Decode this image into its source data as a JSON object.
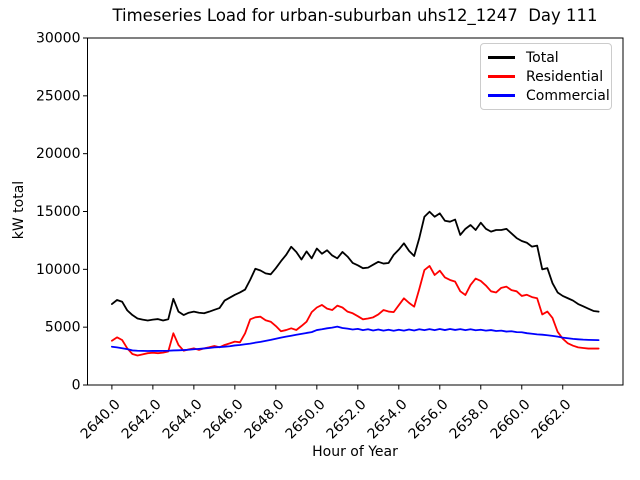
{
  "chart_data": {
    "type": "line",
    "title": "Timeseries Load for urban-suburban uhs12_1247  Day 111",
    "xlabel": "Hour of Year",
    "ylabel": "kW total",
    "xlim": [
      2638.81,
      2664.94
    ],
    "ylim": [
      0,
      30000
    ],
    "grid": false,
    "legend_position": "upper right",
    "yticks": {
      "values": [
        0,
        5000,
        10000,
        15000,
        20000,
        25000,
        30000
      ],
      "labels": [
        "0",
        "5000",
        "10000",
        "15000",
        "20000",
        "25000",
        "30000"
      ]
    },
    "xticks": {
      "values": [
        2640,
        2642,
        2644,
        2646,
        2648,
        2650,
        2652,
        2654,
        2656,
        2658,
        2660,
        2662
      ],
      "labels": [
        "2640.0",
        "2642.0",
        "2644.0",
        "2646.0",
        "2648.0",
        "2650.0",
        "2652.0",
        "2654.0",
        "2656.0",
        "2658.0",
        "2660.0",
        "2662.0"
      ],
      "rotation": 45
    },
    "x": [
      2640.0,
      2640.25,
      2640.5,
      2640.75,
      2641.0,
      2641.25,
      2641.5,
      2641.75,
      2642.0,
      2642.25,
      2642.5,
      2642.75,
      2643.0,
      2643.25,
      2643.5,
      2643.75,
      2644.0,
      2644.25,
      2644.5,
      2644.75,
      2645.0,
      2645.25,
      2645.5,
      2645.75,
      2646.0,
      2646.25,
      2646.5,
      2646.75,
      2647.0,
      2647.25,
      2647.5,
      2647.75,
      2648.0,
      2648.25,
      2648.5,
      2648.75,
      2649.0,
      2649.25,
      2649.5,
      2649.75,
      2650.0,
      2650.25,
      2650.5,
      2650.75,
      2651.0,
      2651.25,
      2651.5,
      2651.75,
      2652.0,
      2652.25,
      2652.5,
      2652.75,
      2653.0,
      2653.25,
      2653.5,
      2653.75,
      2654.0,
      2654.25,
      2654.5,
      2654.75,
      2655.0,
      2655.25,
      2655.5,
      2655.75,
      2656.0,
      2656.25,
      2656.5,
      2656.75,
      2657.0,
      2657.25,
      2657.5,
      2657.75,
      2658.0,
      2658.25,
      2658.5,
      2658.75,
      2659.0,
      2659.25,
      2659.5,
      2659.75,
      2660.0,
      2660.25,
      2660.5,
      2660.75,
      2661.0,
      2661.25,
      2661.5,
      2661.75,
      2662.0,
      2662.25,
      2662.5,
      2662.75,
      2663.0,
      2663.25,
      2663.5,
      2663.75
    ],
    "series": [
      {
        "name": "Total",
        "color": "#000000",
        "values": [
          7000,
          7350,
          7200,
          6450,
          6050,
          5750,
          5650,
          5580,
          5650,
          5700,
          5580,
          5680,
          7450,
          6340,
          6050,
          6250,
          6340,
          6250,
          6200,
          6340,
          6500,
          6650,
          7300,
          7550,
          7800,
          8000,
          8250,
          9100,
          10050,
          9900,
          9650,
          9570,
          10100,
          10700,
          11240,
          11950,
          11500,
          10850,
          11550,
          10950,
          11800,
          11350,
          11650,
          11200,
          10950,
          11500,
          11100,
          10550,
          10350,
          10100,
          10150,
          10400,
          10650,
          10500,
          10550,
          11250,
          11700,
          12250,
          11600,
          11150,
          12700,
          14550,
          14980,
          14550,
          14840,
          14200,
          14120,
          14300,
          12970,
          13500,
          13830,
          13400,
          14030,
          13500,
          13260,
          13400,
          13400,
          13500,
          13100,
          12700,
          12450,
          12300,
          11960,
          12050,
          10000,
          10100,
          8800,
          8000,
          7700,
          7500,
          7300,
          7000,
          6800,
          6600,
          6400,
          6340
        ]
      },
      {
        "name": "Residential",
        "color": "#ff0000",
        "values": [
          3830,
          4120,
          3890,
          3170,
          2680,
          2550,
          2650,
          2750,
          2790,
          2750,
          2800,
          2900,
          4470,
          3460,
          2965,
          3080,
          3170,
          3030,
          3170,
          3260,
          3370,
          3260,
          3460,
          3600,
          3750,
          3690,
          4470,
          5680,
          5850,
          5905,
          5600,
          5470,
          5100,
          4650,
          4750,
          4900,
          4755,
          5100,
          5470,
          6300,
          6700,
          6920,
          6600,
          6480,
          6860,
          6700,
          6340,
          6200,
          5950,
          5680,
          5750,
          5850,
          6100,
          6480,
          6350,
          6300,
          6900,
          7495,
          7100,
          6770,
          8300,
          9940,
          10290,
          9510,
          9885,
          9300,
          9080,
          8935,
          8100,
          7780,
          8650,
          9200,
          9000,
          8600,
          8100,
          8000,
          8400,
          8500,
          8200,
          8100,
          7700,
          7800,
          7600,
          7500,
          6100,
          6350,
          5800,
          4600,
          4000,
          3600,
          3400,
          3250,
          3200,
          3150,
          3150,
          3150
        ]
      },
      {
        "name": "Commercial",
        "color": "#0000ff",
        "values": [
          3310,
          3250,
          3180,
          3100,
          2990,
          2960,
          2950,
          2940,
          2950,
          2945,
          2950,
          2960,
          2990,
          3000,
          3020,
          3050,
          3090,
          3120,
          3160,
          3200,
          3250,
          3280,
          3310,
          3350,
          3420,
          3460,
          3520,
          3580,
          3660,
          3730,
          3820,
          3900,
          4000,
          4100,
          4180,
          4260,
          4340,
          4420,
          4500,
          4570,
          4750,
          4820,
          4900,
          4960,
          5050,
          4930,
          4870,
          4800,
          4850,
          4740,
          4820,
          4710,
          4800,
          4700,
          4780,
          4690,
          4780,
          4700,
          4800,
          4710,
          4820,
          4740,
          4830,
          4740,
          4840,
          4750,
          4840,
          4760,
          4830,
          4740,
          4820,
          4730,
          4780,
          4700,
          4750,
          4670,
          4700,
          4620,
          4650,
          4570,
          4560,
          4480,
          4430,
          4380,
          4350,
          4300,
          4250,
          4180,
          4100,
          4040,
          3990,
          3950,
          3920,
          3900,
          3890,
          3880
        ]
      }
    ]
  }
}
